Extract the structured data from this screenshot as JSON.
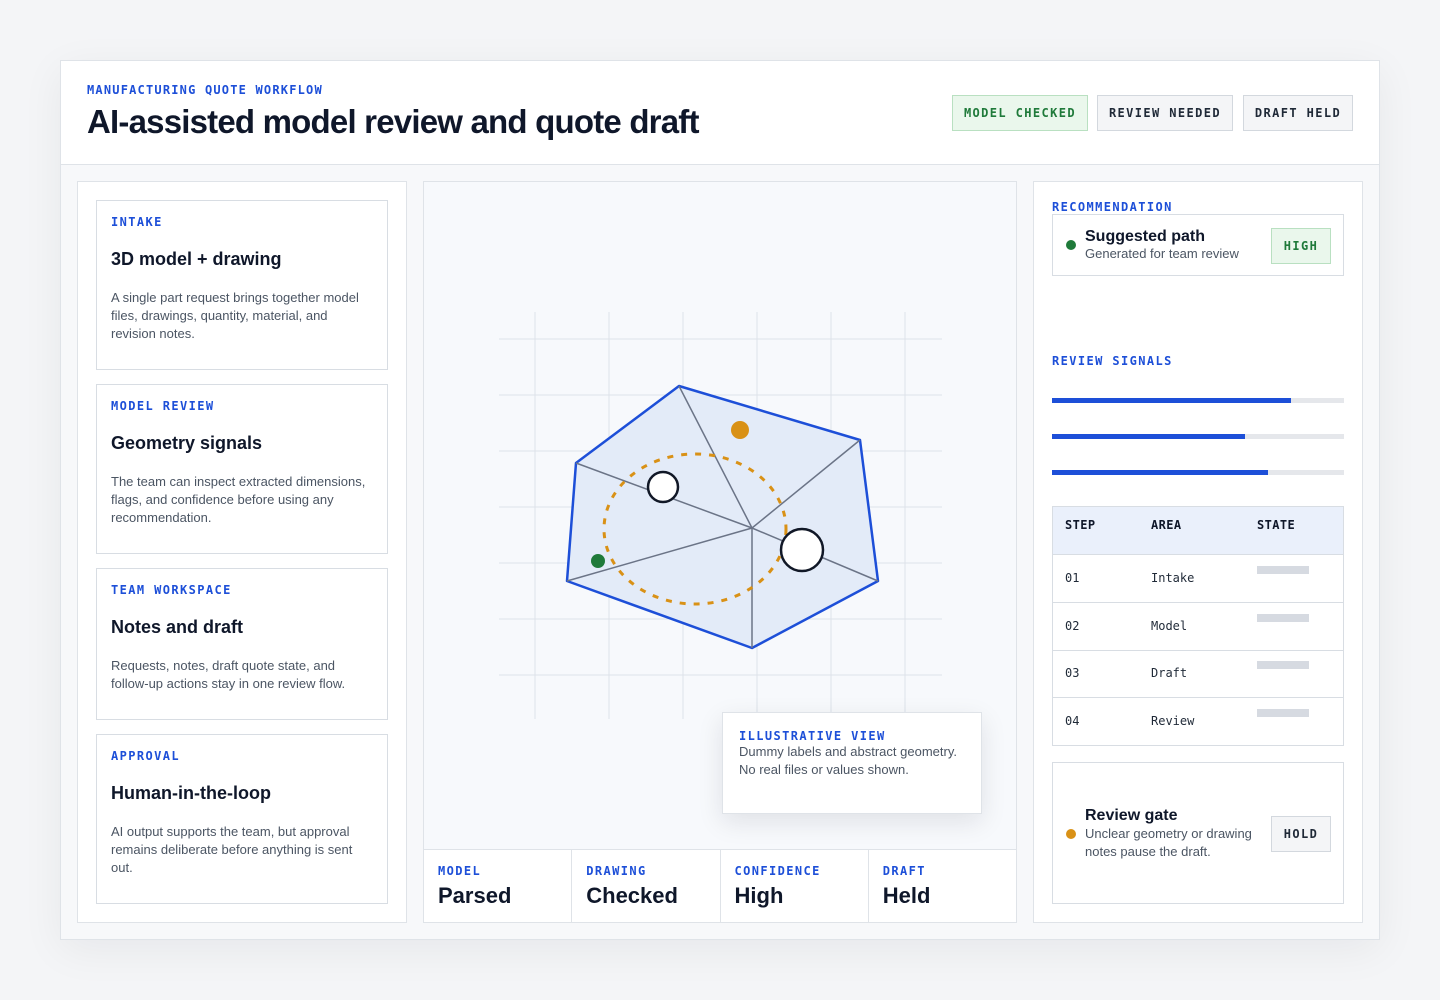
{
  "header": {
    "eyebrow": "MANUFACTURING QUOTE WORKFLOW",
    "title": "AI-assisted model review and quote draft",
    "badges": [
      "MODEL CHECKED",
      "REVIEW NEEDED",
      "DRAFT HELD"
    ]
  },
  "left": {
    "cards": [
      {
        "kicker": "INTAKE",
        "title": "3D model + drawing",
        "body": "A single part request brings together model files, drawings, quantity, material, and revision notes."
      },
      {
        "kicker": "MODEL REVIEW",
        "title": "Geometry signals",
        "body": "The team can inspect extracted dimensions, flags, and confidence before using any recommendation."
      },
      {
        "kicker": "TEAM WORKSPACE",
        "title": "Notes and draft",
        "body": "Requests, notes, draft quote state, and follow-up actions stay in one review flow."
      },
      {
        "kicker": "APPROVAL",
        "title": "Human-in-the-loop",
        "body": "AI output supports the team, but approval remains deliberate before anything is sent out."
      }
    ]
  },
  "center": {
    "tooltip": {
      "title": "ILLUSTRATIVE VIEW",
      "body": "Dummy labels and abstract geometry. No real files or values shown."
    },
    "stats": [
      {
        "label": "MODEL",
        "value": "Parsed"
      },
      {
        "label": "DRAWING",
        "value": "Checked"
      },
      {
        "label": "CONFIDENCE",
        "value": "High"
      },
      {
        "label": "DRAFT",
        "value": "Held"
      }
    ]
  },
  "right": {
    "recommendation_label": "RECOMMENDATION",
    "recommendation": {
      "title": "Suggested path",
      "subtitle": "Generated for team review",
      "level": "HIGH"
    },
    "signals_label": "REVIEW SIGNALS",
    "signals": [
      0.82,
      0.66,
      0.74
    ],
    "table": {
      "columns": [
        "STEP",
        "AREA",
        "STATE"
      ],
      "rows": [
        {
          "step": "01",
          "area": "Intake"
        },
        {
          "step": "02",
          "area": "Model"
        },
        {
          "step": "03",
          "area": "Draft"
        },
        {
          "step": "04",
          "area": "Review"
        }
      ]
    },
    "gate": {
      "title": "Review gate",
      "subtitle": "Unclear geometry or drawing notes pause the draft.",
      "state": "HOLD"
    }
  },
  "colors": {
    "accent": "#1d4fd8",
    "success": "#1f7a3a",
    "warning": "#d99116",
    "panel": "#ffffff"
  }
}
